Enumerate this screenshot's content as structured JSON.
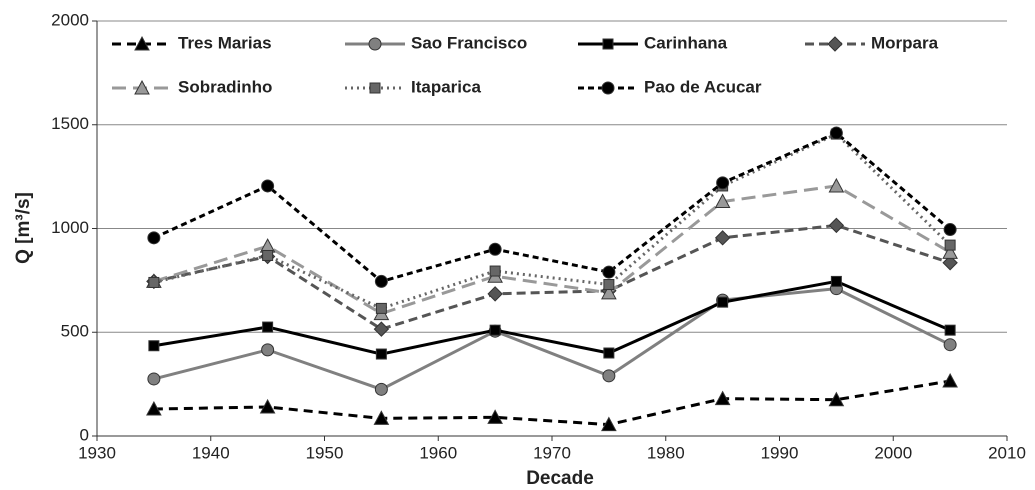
{
  "chart_data": {
    "type": "line",
    "x_label": "Decade",
    "y_label": "Q [m³/s]",
    "x": [
      1935,
      1945,
      1955,
      1965,
      1975,
      1985,
      1995,
      2005
    ],
    "xlim": [
      1930,
      2010
    ],
    "xticks": [
      1930,
      1940,
      1950,
      1960,
      1970,
      1980,
      1990,
      2000,
      2010
    ],
    "ylim": [
      0,
      2000
    ],
    "yticks": [
      0,
      500,
      1000,
      1500,
      2000
    ],
    "grid": true,
    "legend": "top",
    "series": [
      {
        "name": "Tres Marias",
        "color": "#000000",
        "dash": "9 6",
        "marker": "triangle",
        "values": [
          130,
          140,
          85,
          90,
          55,
          180,
          175,
          265
        ]
      },
      {
        "name": "Sao Francisco",
        "color": "#808080",
        "dash": "none",
        "marker": "circle",
        "values": [
          275,
          415,
          225,
          505,
          290,
          655,
          710,
          440
        ]
      },
      {
        "name": "Carinhana",
        "color": "#000000",
        "dash": "none",
        "marker": "square",
        "values": [
          435,
          525,
          395,
          510,
          400,
          645,
          745,
          510
        ]
      },
      {
        "name": "Morpara",
        "color": "#555555",
        "dash": "9 5",
        "marker": "diamond",
        "values": [
          745,
          865,
          515,
          685,
          700,
          955,
          1015,
          835
        ]
      },
      {
        "name": "Sobradinho",
        "color": "#999999",
        "dash": "14 7",
        "marker": "triangle",
        "values": [
          745,
          915,
          590,
          770,
          690,
          1130,
          1205,
          885
        ]
      },
      {
        "name": "Itaparica",
        "color": "#666666",
        "dash": "2 4",
        "marker": "square",
        "values": [
          740,
          870,
          615,
          795,
          730,
          1205,
          1455,
          920
        ]
      },
      {
        "name": "Pao de Acucar",
        "color": "#000000",
        "dash": "6 4",
        "marker": "circle",
        "values": [
          955,
          1205,
          745,
          900,
          790,
          1220,
          1460,
          995
        ]
      }
    ]
  }
}
